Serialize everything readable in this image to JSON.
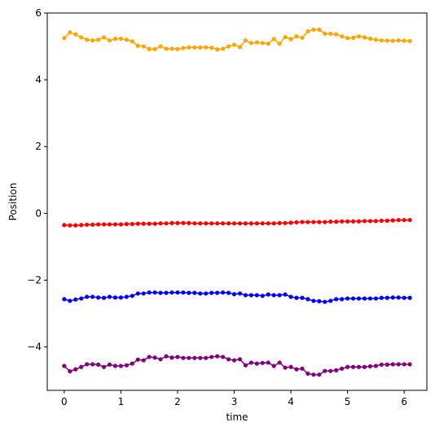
{
  "chart_data": {
    "type": "line",
    "title": "",
    "xlabel": "time",
    "ylabel": "Position",
    "xlim": [
      -0.3,
      6.4
    ],
    "ylim": [
      -5.3,
      6.0
    ],
    "grid": false,
    "x_ticks": [
      0,
      1,
      2,
      3,
      4,
      5,
      6
    ],
    "y_ticks": [
      -4,
      -2,
      0,
      2,
      4,
      6
    ],
    "x_tick_labels": [
      "0",
      "1",
      "2",
      "3",
      "4",
      "5",
      "6"
    ],
    "y_tick_labels": [
      "−4",
      "−2",
      "0",
      "2",
      "4",
      "6"
    ],
    "x": [
      0.0,
      0.1,
      0.2,
      0.3,
      0.4,
      0.5,
      0.6,
      0.7,
      0.8,
      0.9,
      1.0,
      1.1,
      1.2,
      1.3,
      1.4,
      1.5,
      1.6,
      1.7,
      1.8,
      1.9,
      2.0,
      2.1,
      2.2,
      2.3,
      2.4,
      2.5,
      2.6,
      2.7,
      2.8,
      2.9,
      3.0,
      3.1,
      3.2,
      3.3,
      3.4,
      3.5,
      3.6,
      3.7,
      3.8,
      3.9,
      4.0,
      4.1,
      4.2,
      4.3,
      4.4,
      4.5,
      4.6,
      4.7,
      4.8,
      4.9,
      5.0,
      5.1,
      5.2,
      5.3,
      5.4,
      5.5,
      5.6,
      5.7,
      5.8,
      5.9,
      6.0,
      6.1
    ],
    "series": [
      {
        "color": "#ffa500",
        "values": [
          5.25,
          5.42,
          5.36,
          5.27,
          5.2,
          5.18,
          5.2,
          5.27,
          5.18,
          5.23,
          5.23,
          5.2,
          5.15,
          5.02,
          5.0,
          4.92,
          4.92,
          5.0,
          4.93,
          4.93,
          4.92,
          4.95,
          4.97,
          4.97,
          4.97,
          4.97,
          4.96,
          4.91,
          4.93,
          5.0,
          5.05,
          4.98,
          5.18,
          5.1,
          5.12,
          5.1,
          5.08,
          5.22,
          5.08,
          5.28,
          5.22,
          5.3,
          5.26,
          5.45,
          5.5,
          5.5,
          5.38,
          5.38,
          5.36,
          5.3,
          5.25,
          5.26,
          5.3,
          5.27,
          5.23,
          5.2,
          5.18,
          5.17,
          5.17,
          5.18,
          5.17,
          5.16
        ]
      },
      {
        "color": "#ff0000",
        "values": [
          -0.35,
          -0.36,
          -0.36,
          -0.35,
          -0.34,
          -0.34,
          -0.33,
          -0.33,
          -0.33,
          -0.33,
          -0.33,
          -0.32,
          -0.32,
          -0.31,
          -0.31,
          -0.31,
          -0.31,
          -0.3,
          -0.3,
          -0.29,
          -0.29,
          -0.29,
          -0.29,
          -0.3,
          -0.3,
          -0.3,
          -0.3,
          -0.3,
          -0.3,
          -0.3,
          -0.3,
          -0.3,
          -0.3,
          -0.3,
          -0.3,
          -0.3,
          -0.3,
          -0.3,
          -0.29,
          -0.29,
          -0.28,
          -0.27,
          -0.26,
          -0.26,
          -0.26,
          -0.26,
          -0.26,
          -0.25,
          -0.25,
          -0.24,
          -0.24,
          -0.24,
          -0.24,
          -0.23,
          -0.23,
          -0.23,
          -0.22,
          -0.22,
          -0.21,
          -0.2,
          -0.2,
          -0.2
        ]
      },
      {
        "color": "#0000ff",
        "values": [
          -2.57,
          -2.62,
          -2.58,
          -2.55,
          -2.5,
          -2.5,
          -2.52,
          -2.53,
          -2.5,
          -2.52,
          -2.52,
          -2.5,
          -2.47,
          -2.4,
          -2.4,
          -2.37,
          -2.37,
          -2.38,
          -2.38,
          -2.37,
          -2.37,
          -2.37,
          -2.38,
          -2.38,
          -2.4,
          -2.4,
          -2.38,
          -2.38,
          -2.37,
          -2.38,
          -2.42,
          -2.4,
          -2.45,
          -2.45,
          -2.45,
          -2.47,
          -2.43,
          -2.45,
          -2.45,
          -2.43,
          -2.5,
          -2.53,
          -2.53,
          -2.57,
          -2.62,
          -2.63,
          -2.65,
          -2.62,
          -2.57,
          -2.57,
          -2.55,
          -2.55,
          -2.55,
          -2.55,
          -2.55,
          -2.55,
          -2.53,
          -2.53,
          -2.52,
          -2.52,
          -2.53,
          -2.53
        ]
      },
      {
        "color": "#800080",
        "values": [
          -4.57,
          -4.73,
          -4.67,
          -4.6,
          -4.52,
          -4.52,
          -4.53,
          -4.6,
          -4.53,
          -4.57,
          -4.57,
          -4.55,
          -4.5,
          -4.38,
          -4.4,
          -4.3,
          -4.32,
          -4.37,
          -4.28,
          -4.32,
          -4.3,
          -4.33,
          -4.33,
          -4.33,
          -4.33,
          -4.33,
          -4.3,
          -4.28,
          -4.3,
          -4.37,
          -4.4,
          -4.37,
          -4.55,
          -4.47,
          -4.5,
          -4.48,
          -4.47,
          -4.57,
          -4.47,
          -4.62,
          -4.6,
          -4.67,
          -4.65,
          -4.8,
          -4.83,
          -4.83,
          -4.72,
          -4.72,
          -4.7,
          -4.65,
          -4.6,
          -4.6,
          -4.6,
          -4.6,
          -4.58,
          -4.57,
          -4.53,
          -4.53,
          -4.52,
          -4.52,
          -4.52,
          -4.52
        ]
      }
    ]
  }
}
